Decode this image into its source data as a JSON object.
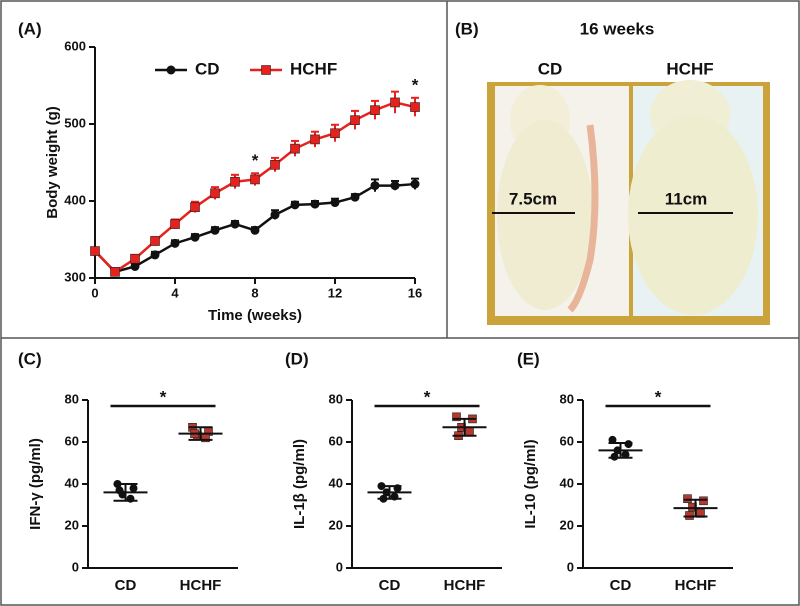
{
  "chart_data": [
    {
      "type": "line",
      "label": "(A)",
      "x_label": "Time (weeks)",
      "y_label": "Body weight (g)",
      "x": [
        0,
        1,
        2,
        3,
        4,
        5,
        6,
        7,
        8,
        9,
        10,
        11,
        12,
        13,
        14,
        15,
        16
      ],
      "series": [
        {
          "name": "CD",
          "color": "#111111",
          "marker": "circle",
          "values": [
            335,
            308,
            315,
            330,
            345,
            353,
            362,
            370,
            362,
            382,
            395,
            396,
            398,
            405,
            420,
            420,
            422
          ],
          "errors": [
            4,
            3,
            4,
            4,
            4,
            4,
            4,
            4,
            4,
            6,
            4,
            4,
            5,
            4,
            8,
            6,
            7
          ]
        },
        {
          "name": "HCHF",
          "color": "#e8211d",
          "marker": "square",
          "values": [
            335,
            308,
            325,
            348,
            370,
            392,
            410,
            425,
            428,
            447,
            468,
            480,
            488,
            505,
            518,
            528,
            522
          ],
          "errors": [
            4,
            4,
            5,
            5,
            6,
            7,
            8,
            9,
            8,
            9,
            10,
            10,
            11,
            12,
            12,
            14,
            12
          ]
        }
      ],
      "annotations": [
        {
          "text": "*",
          "x": 8
        },
        {
          "text": "*",
          "x": 16
        }
      ],
      "xlim": [
        0,
        16
      ],
      "xticks": [
        0,
        4,
        8,
        12,
        16
      ],
      "ylim": [
        300,
        600
      ],
      "yticks": [
        300,
        400,
        500,
        600
      ],
      "legend": "top"
    },
    {
      "type": "dotplot",
      "label": "(C)",
      "y_label": "IFN-γ (pg/ml)",
      "categories": [
        "CD",
        "HCHF"
      ],
      "groups": [
        {
          "color": "#111111",
          "marker": "circle",
          "values": [
            40,
            38,
            35,
            33,
            37
          ],
          "mean": 36,
          "sd": 4
        },
        {
          "color": "#b5392c",
          "marker": "square",
          "values": [
            67,
            65,
            63,
            62,
            64
          ],
          "mean": 64,
          "sd": 3
        }
      ],
      "significance": "*",
      "ylim": [
        0,
        80
      ],
      "yticks": [
        0,
        20,
        40,
        60,
        80
      ]
    },
    {
      "type": "dotplot",
      "label": "(D)",
      "y_label": "IL-1β (pg/ml)",
      "categories": [
        "CD",
        "HCHF"
      ],
      "groups": [
        {
          "color": "#111111",
          "marker": "circle",
          "values": [
            39,
            38,
            36,
            34,
            33
          ],
          "mean": 36,
          "sd": 3
        },
        {
          "color": "#b5392c",
          "marker": "square",
          "values": [
            72,
            71,
            67,
            65,
            63
          ],
          "mean": 67,
          "sd": 4
        }
      ],
      "significance": "*",
      "ylim": [
        0,
        80
      ],
      "yticks": [
        0,
        20,
        40,
        60,
        80
      ]
    },
    {
      "type": "dotplot",
      "label": "(E)",
      "y_label": "IL-10 (pg/ml)",
      "categories": [
        "CD",
        "HCHF"
      ],
      "groups": [
        {
          "color": "#111111",
          "marker": "circle",
          "values": [
            61,
            59,
            56,
            54,
            53
          ],
          "mean": 56,
          "sd": 3.5
        },
        {
          "color": "#b5392c",
          "marker": "square",
          "values": [
            33,
            32,
            29,
            26,
            25
          ],
          "mean": 28.5,
          "sd": 4
        }
      ],
      "significance": "*",
      "ylim": [
        0,
        80
      ],
      "yticks": [
        0,
        20,
        40,
        60,
        80
      ]
    }
  ],
  "photo": {
    "label": "(B)",
    "title": "16 weeks",
    "left_caption": "CD",
    "right_caption": "HCHF",
    "left_measure": "7.5cm",
    "right_measure": "11cm"
  }
}
